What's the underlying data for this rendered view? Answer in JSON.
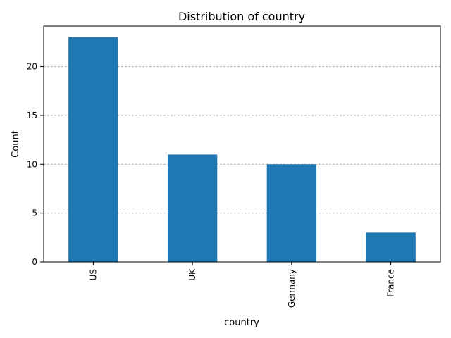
{
  "chart_data": {
    "type": "bar",
    "title": "Distribution of country",
    "xlabel": "country",
    "ylabel": "Count",
    "categories": [
      "US",
      "UK",
      "Germany",
      "France"
    ],
    "values": [
      23,
      11,
      10,
      3
    ],
    "ylim": [
      0,
      24.15
    ],
    "yticks": [
      0,
      5,
      10,
      15,
      20
    ],
    "grid": {
      "y": true,
      "style": "dashed"
    },
    "colors": {
      "bar": "#1f77b4",
      "grid": "#b0b0b0",
      "axis": "#000000"
    }
  }
}
